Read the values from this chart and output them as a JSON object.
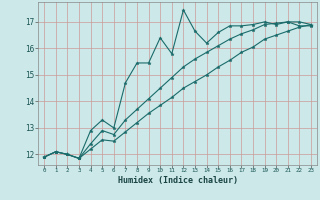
{
  "xlabel": "Humidex (Indice chaleur)",
  "ylabel": "",
  "bg_color": "#cce8e8",
  "grid_color": "#cc9999",
  "line_color": "#1a6b6b",
  "xlim": [
    -0.5,
    23.5
  ],
  "ylim": [
    11.6,
    17.75
  ],
  "yticks": [
    12,
    13,
    14,
    15,
    16,
    17
  ],
  "xticks": [
    0,
    1,
    2,
    3,
    4,
    5,
    6,
    7,
    8,
    9,
    10,
    11,
    12,
    13,
    14,
    15,
    16,
    17,
    18,
    19,
    20,
    21,
    22,
    23
  ],
  "line1_x": [
    0,
    1,
    2,
    3,
    4,
    5,
    6,
    7,
    8,
    9,
    10,
    11,
    12,
    13,
    14,
    15,
    16,
    17,
    18,
    19,
    20,
    21,
    22,
    23
  ],
  "line1_y": [
    11.9,
    12.1,
    12.0,
    11.85,
    12.9,
    13.3,
    13.0,
    14.7,
    15.45,
    15.45,
    16.4,
    15.8,
    17.45,
    16.65,
    16.2,
    16.6,
    16.85,
    16.85,
    16.9,
    17.0,
    16.9,
    17.0,
    16.85,
    16.85
  ],
  "line2_x": [
    0,
    1,
    2,
    3,
    4,
    5,
    6,
    7,
    8,
    9,
    10,
    11,
    12,
    13,
    14,
    15,
    16,
    17,
    18,
    19,
    20,
    21,
    22,
    23
  ],
  "line2_y": [
    11.9,
    12.1,
    12.0,
    11.85,
    12.4,
    12.9,
    12.75,
    13.3,
    13.7,
    14.1,
    14.5,
    14.9,
    15.3,
    15.6,
    15.85,
    16.1,
    16.35,
    16.55,
    16.7,
    16.9,
    16.95,
    17.0,
    17.0,
    16.9
  ],
  "line3_x": [
    0,
    1,
    2,
    3,
    4,
    5,
    6,
    7,
    8,
    9,
    10,
    11,
    12,
    13,
    14,
    15,
    16,
    17,
    18,
    19,
    20,
    21,
    22,
    23
  ],
  "line3_y": [
    11.9,
    12.1,
    12.0,
    11.85,
    12.2,
    12.55,
    12.5,
    12.85,
    13.2,
    13.55,
    13.85,
    14.15,
    14.5,
    14.75,
    15.0,
    15.3,
    15.55,
    15.85,
    16.05,
    16.35,
    16.5,
    16.65,
    16.8,
    16.9
  ]
}
